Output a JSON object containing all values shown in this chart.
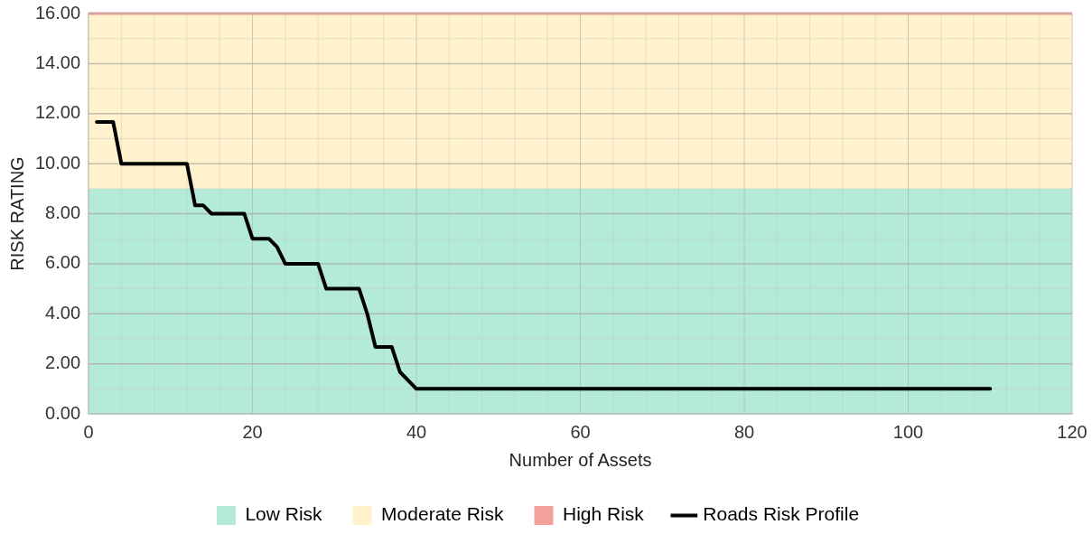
{
  "chart_data": {
    "type": "line",
    "xlabel": "Number of Assets",
    "ylabel": "RISK RATING",
    "x": [
      1,
      3,
      4,
      12,
      13,
      14,
      15,
      19,
      20,
      22,
      23,
      24,
      28,
      29,
      33,
      34,
      35,
      37,
      38,
      40,
      110
    ],
    "series": [
      {
        "name": "Roads Risk Profile",
        "color": "#000000",
        "values": [
          11.67,
          11.67,
          10,
          10,
          8.33,
          8.33,
          8,
          8,
          7,
          7,
          6.67,
          6,
          6,
          5,
          5,
          4,
          2.67,
          2.67,
          1.67,
          1,
          1
        ]
      }
    ],
    "xlim": [
      0,
      120
    ],
    "xticks": [
      0,
      {
        "value": 4,
        "label": null
      },
      {
        "value": 8,
        "label": null
      },
      {
        "value": 12,
        "label": null
      },
      {
        "value": 16,
        "label": null
      },
      20,
      {
        "value": 24,
        "label": null
      },
      {
        "value": 28,
        "label": null
      },
      {
        "value": 32,
        "label": null
      },
      {
        "value": 36,
        "label": null
      },
      40,
      {
        "value": 44,
        "label": null
      },
      {
        "value": 48,
        "label": null
      },
      {
        "value": 52,
        "label": null
      },
      {
        "value": 56,
        "label": null
      },
      60,
      {
        "value": 64,
        "label": null
      },
      {
        "value": 68,
        "label": null
      },
      {
        "value": 72,
        "label": null
      },
      {
        "value": 76,
        "label": null
      },
      80,
      {
        "value": 84,
        "label": null
      },
      {
        "value": 88,
        "label": null
      },
      {
        "value": 92,
        "label": null
      },
      {
        "value": 96,
        "label": null
      },
      100,
      {
        "value": 104,
        "label": null
      },
      {
        "value": 108,
        "label": null
      },
      {
        "value": 112,
        "label": null
      },
      {
        "value": 116,
        "label": null
      },
      120
    ],
    "ylim": [
      0,
      16
    ],
    "yticks": [
      {
        "value": 0,
        "label": "0.00"
      },
      {
        "value": 1,
        "label": null
      },
      {
        "value": 2,
        "label": "2.00"
      },
      {
        "value": 3,
        "label": null
      },
      {
        "value": 4,
        "label": "4.00"
      },
      {
        "value": 5,
        "label": null
      },
      {
        "value": 6,
        "label": "6.00"
      },
      {
        "value": 7,
        "label": null
      },
      {
        "value": 8,
        "label": "8.00"
      },
      {
        "value": 9,
        "label": null
      },
      {
        "value": 10,
        "label": "10.00"
      },
      {
        "value": 11,
        "label": null
      },
      {
        "value": 12,
        "label": "12.00"
      },
      {
        "value": 13,
        "label": null
      },
      {
        "value": 14,
        "label": "14.00"
      },
      {
        "value": 15,
        "label": null
      },
      {
        "value": 16,
        "label": "16.00"
      }
    ],
    "bands": [
      {
        "axis": "y",
        "from": 0,
        "to": 9,
        "label": "Low Risk",
        "color": "#b3ead8"
      },
      {
        "axis": "y",
        "from": 9,
        "to": 16,
        "label": "Moderate Risk",
        "color": "#fff2cc"
      },
      {
        "axis": "y",
        "from": 16,
        "to": 16,
        "label": "High Risk",
        "color": "#f4a09a"
      }
    ],
    "grid": true,
    "legend": "bottom",
    "marker": "none",
    "line_style": "solid"
  }
}
